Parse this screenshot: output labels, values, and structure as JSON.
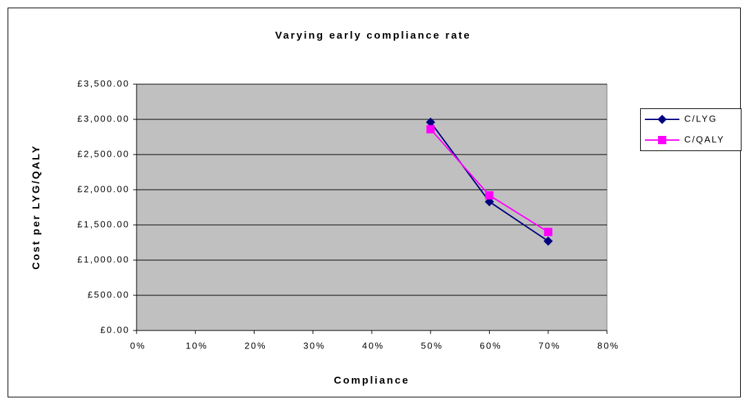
{
  "chart_data": {
    "type": "line",
    "title": "Varying early compliance rate",
    "xlabel": "Compliance",
    "ylabel": "Cost per LYG/QALY",
    "x": [
      50,
      60,
      70
    ],
    "series": [
      {
        "name": "C/LYG",
        "color": "#000080",
        "marker": "diamond",
        "values": [
          2960,
          1830,
          1270
        ]
      },
      {
        "name": "C/QALY",
        "color": "#ff00ff",
        "marker": "square",
        "values": [
          2860,
          1920,
          1400
        ]
      }
    ],
    "xlim": [
      0,
      80
    ],
    "xticks": [
      {
        "value": 0,
        "label": "0%"
      },
      {
        "value": 10,
        "label": "10%"
      },
      {
        "value": 20,
        "label": "20%"
      },
      {
        "value": 30,
        "label": "30%"
      },
      {
        "value": 40,
        "label": "40%"
      },
      {
        "value": 50,
        "label": "50%"
      },
      {
        "value": 60,
        "label": "60%"
      },
      {
        "value": 70,
        "label": "70%"
      },
      {
        "value": 80,
        "label": "80%"
      }
    ],
    "ylim": [
      0,
      3500
    ],
    "yticks": [
      {
        "value": 0,
        "label": "£0.00"
      },
      {
        "value": 500,
        "label": "£500.00"
      },
      {
        "value": 1000,
        "label": "£1,000.00"
      },
      {
        "value": 1500,
        "label": "£1,500.00"
      },
      {
        "value": 2000,
        "label": "£2,000.00"
      },
      {
        "value": 2500,
        "label": "£2,500.00"
      },
      {
        "value": 3000,
        "label": "£3,000.00"
      },
      {
        "value": 3500,
        "label": "£3,500.00"
      }
    ],
    "grid": true,
    "legend": "right",
    "plot_background": "#c0c0c0"
  }
}
